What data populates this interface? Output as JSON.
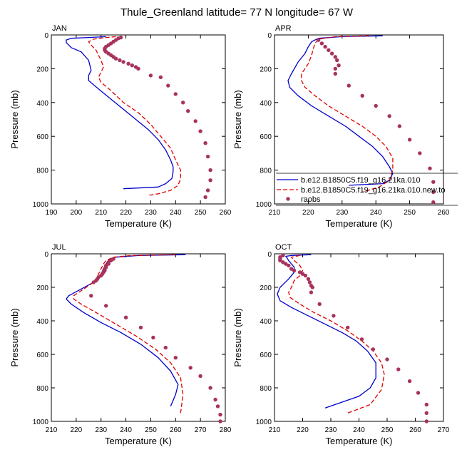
{
  "figure_title": "Thule_Greenland  latitude= 77 N longitude= 67 W",
  "legend": {
    "entries": [
      {
        "label": "b.e12.B1850C5.f19_g16.21ka.010",
        "color": "#0000cc",
        "style": "solid"
      },
      {
        "label": "b.e12.B1850C5.f19_g16.21ka.010.new.to",
        "color": "#e00000",
        "style": "dashed"
      },
      {
        "label": "raobs",
        "color": "#a8325e",
        "style": "marker"
      }
    ]
  },
  "chart_data": [
    {
      "type": "line",
      "title": "JAN",
      "xlabel": "Temperature (K)",
      "ylabel": "Pressure (mb)",
      "xlim": [
        190,
        260
      ],
      "ylim": [
        1000,
        0
      ],
      "xticks": [
        190,
        200,
        210,
        220,
        230,
        240,
        250,
        260
      ],
      "yticks": [
        0,
        200,
        400,
        600,
        800,
        1000
      ],
      "series": [
        {
          "name": "b.e12.B1850C5.f19_g16.21ka.010",
          "x": [
            212,
            205,
            198,
            196,
            196,
            197,
            198,
            202,
            205,
            206,
            205,
            205,
            209,
            214,
            219,
            224,
            229,
            233,
            236,
            238,
            239,
            239,
            238.5,
            236,
            233,
            219
          ],
          "y": [
            10,
            15,
            20,
            30,
            45,
            60,
            75,
            100,
            150,
            210,
            240,
            270,
            320,
            380,
            440,
            500,
            560,
            620,
            680,
            740,
            780,
            810,
            850,
            880,
            900,
            910
          ]
        },
        {
          "name": "b.e12.B1850C5.f19_g16.21ka.010.new.to",
          "x": [
            216,
            212,
            207,
            205,
            206,
            208,
            209,
            210,
            211,
            210,
            209,
            210,
            214,
            219,
            225,
            230,
            234,
            238,
            240,
            242,
            242,
            241,
            238,
            233,
            229
          ],
          "y": [
            10,
            15,
            25,
            40,
            60,
            90,
            120,
            150,
            190,
            220,
            250,
            280,
            330,
            400,
            460,
            530,
            600,
            670,
            740,
            800,
            850,
            890,
            920,
            940,
            950
          ]
        },
        {
          "name": "raobs",
          "x": [
            218,
            217,
            216,
            215,
            214,
            213,
            212,
            211.5,
            211.5,
            212,
            213,
            214,
            215,
            216,
            217.5,
            219,
            221,
            222.5,
            224,
            225,
            230,
            234,
            237,
            240,
            243,
            245,
            248,
            250,
            252,
            253,
            254,
            254,
            253,
            252
          ],
          "y": [
            15,
            20,
            30,
            40,
            50,
            60,
            70,
            80,
            90,
            100,
            110,
            120,
            130,
            140,
            150,
            160,
            170,
            180,
            190,
            200,
            240,
            250,
            300,
            350,
            400,
            450,
            510,
            570,
            640,
            720,
            800,
            860,
            920,
            960
          ]
        }
      ]
    },
    {
      "type": "line",
      "title": "APR",
      "xlabel": "Temperature (K)",
      "ylabel": "Pressure (mb)",
      "xlim": [
        210,
        260
      ],
      "ylim": [
        1000,
        0
      ],
      "xticks": [
        210,
        220,
        230,
        240,
        250,
        260
      ],
      "yticks": [
        0,
        200,
        400,
        600,
        800,
        1000
      ],
      "series": [
        {
          "name": "b.e12.B1850C5.f19_g16.21ka.010",
          "x": [
            242,
            230,
            223,
            221,
            220,
            219,
            217,
            215,
            214,
            214.5,
            217,
            221,
            226,
            231,
            235,
            239,
            242,
            244,
            245,
            244,
            242,
            232
          ],
          "y": [
            5,
            10,
            20,
            40,
            70,
            110,
            160,
            230,
            270,
            310,
            360,
            420,
            480,
            540,
            600,
            660,
            720,
            780,
            820,
            860,
            880,
            890
          ]
        },
        {
          "name": "b.e12.B1850C5.f19_g16.21ka.010.new.to",
          "x": [
            238,
            228,
            223,
            222,
            221.5,
            221,
            220,
            218,
            218,
            219,
            222,
            226,
            231,
            236,
            240,
            243,
            245,
            245,
            244,
            241,
            236
          ],
          "y": [
            5,
            10,
            25,
            50,
            80,
            120,
            170,
            230,
            270,
            310,
            360,
            420,
            480,
            540,
            600,
            660,
            730,
            800,
            860,
            900,
            930
          ]
        },
        {
          "name": "raobs",
          "x": [
            223,
            224,
            225,
            226,
            227,
            228,
            228.5,
            229,
            228,
            228,
            232,
            236,
            240,
            244,
            247,
            250,
            253,
            256,
            257,
            257,
            257
          ],
          "y": [
            30,
            50,
            70,
            90,
            110,
            130,
            150,
            180,
            200,
            230,
            300,
            360,
            420,
            480,
            540,
            620,
            700,
            790,
            870,
            930,
            990
          ]
        }
      ]
    },
    {
      "type": "line",
      "title": "JUL",
      "xlabel": "Temperature (K)",
      "ylabel": "Pressure (mb)",
      "xlim": [
        210,
        280
      ],
      "ylim": [
        1000,
        0
      ],
      "xticks": [
        210,
        220,
        230,
        240,
        250,
        260,
        270,
        280
      ],
      "yticks": [
        0,
        200,
        400,
        600,
        800,
        1000
      ],
      "series": [
        {
          "name": "b.e12.B1850C5.f19_g16.21ka.010",
          "x": [
            264,
            245,
            236,
            233,
            232,
            231,
            230,
            228,
            227,
            222,
            217,
            216,
            218,
            223,
            230,
            238,
            246,
            253,
            258,
            261,
            260,
            258
          ],
          "y": [
            5,
            10,
            20,
            40,
            60,
            90,
            120,
            150,
            170,
            210,
            250,
            270,
            300,
            350,
            410,
            470,
            540,
            620,
            700,
            780,
            840,
            910
          ]
        },
        {
          "name": "b.e12.B1850C5.f19_g16.21ka.010.new.to",
          "x": [
            260,
            242,
            235,
            232,
            231,
            230,
            229,
            228,
            227,
            223,
            219,
            219,
            222,
            228,
            236,
            244,
            252,
            258,
            262,
            263,
            262
          ],
          "y": [
            5,
            10,
            20,
            40,
            60,
            90,
            120,
            150,
            170,
            210,
            250,
            270,
            300,
            350,
            420,
            490,
            570,
            650,
            740,
            840,
            950
          ]
        },
        {
          "name": "raobs",
          "x": [
            235,
            234,
            233,
            233,
            232,
            232,
            231.5,
            231.5,
            231,
            230.5,
            230,
            229,
            228.5,
            228,
            227,
            226,
            232,
            240,
            246,
            251,
            256,
            260,
            266,
            270,
            274,
            276,
            277,
            278,
            278
          ],
          "y": [
            30,
            40,
            50,
            60,
            70,
            80,
            90,
            100,
            110,
            120,
            130,
            140,
            150,
            160,
            170,
            250,
            310,
            380,
            440,
            500,
            560,
            620,
            680,
            730,
            800,
            870,
            910,
            960,
            1000
          ]
        }
      ]
    },
    {
      "type": "line",
      "title": "OCT",
      "xlabel": "Temperature (K)",
      "ylabel": "Pressure (mb)",
      "xlim": [
        210,
        270
      ],
      "ylim": [
        1000,
        0
      ],
      "xticks": [
        210,
        220,
        230,
        240,
        250,
        260,
        270
      ],
      "yticks": [
        0,
        200,
        400,
        600,
        800,
        1000
      ],
      "series": [
        {
          "name": "b.e12.B1850C5.f19_g16.21ka.010",
          "x": [
            223,
            216,
            214,
            214.5,
            215,
            216,
            217,
            217,
            215,
            212,
            211,
            212,
            216,
            222,
            228,
            234,
            239,
            243,
            246,
            246,
            244,
            240,
            228
          ],
          "y": [
            5,
            10,
            15,
            25,
            40,
            60,
            80,
            110,
            150,
            200,
            240,
            280,
            320,
            370,
            420,
            470,
            520,
            580,
            650,
            740,
            800,
            850,
            920
          ]
        },
        {
          "name": "b.e12.B1850C5.f19_g16.21ka.010.new.to",
          "x": [
            219,
            216,
            217,
            219,
            220,
            219,
            217,
            216,
            215,
            215.5,
            219,
            224,
            230,
            236,
            241,
            245,
            248,
            249,
            248,
            244,
            236
          ],
          "y": [
            10,
            20,
            40,
            70,
            100,
            130,
            160,
            200,
            230,
            260,
            300,
            350,
            400,
            460,
            520,
            580,
            650,
            720,
            810,
            900,
            950
          ]
        },
        {
          "name": "raobs",
          "x": [
            213,
            212,
            212,
            212,
            213,
            214,
            215,
            216,
            217,
            219,
            220,
            221,
            222,
            222.5,
            223,
            223.5,
            223,
            226,
            231,
            236,
            241,
            245,
            250,
            254,
            258,
            261,
            264,
            264,
            264
          ],
          "y": [
            10,
            20,
            30,
            40,
            50,
            60,
            70,
            90,
            100,
            110,
            120,
            130,
            150,
            170,
            190,
            200,
            230,
            300,
            370,
            440,
            510,
            570,
            630,
            690,
            760,
            830,
            900,
            950,
            1000
          ]
        }
      ]
    }
  ]
}
